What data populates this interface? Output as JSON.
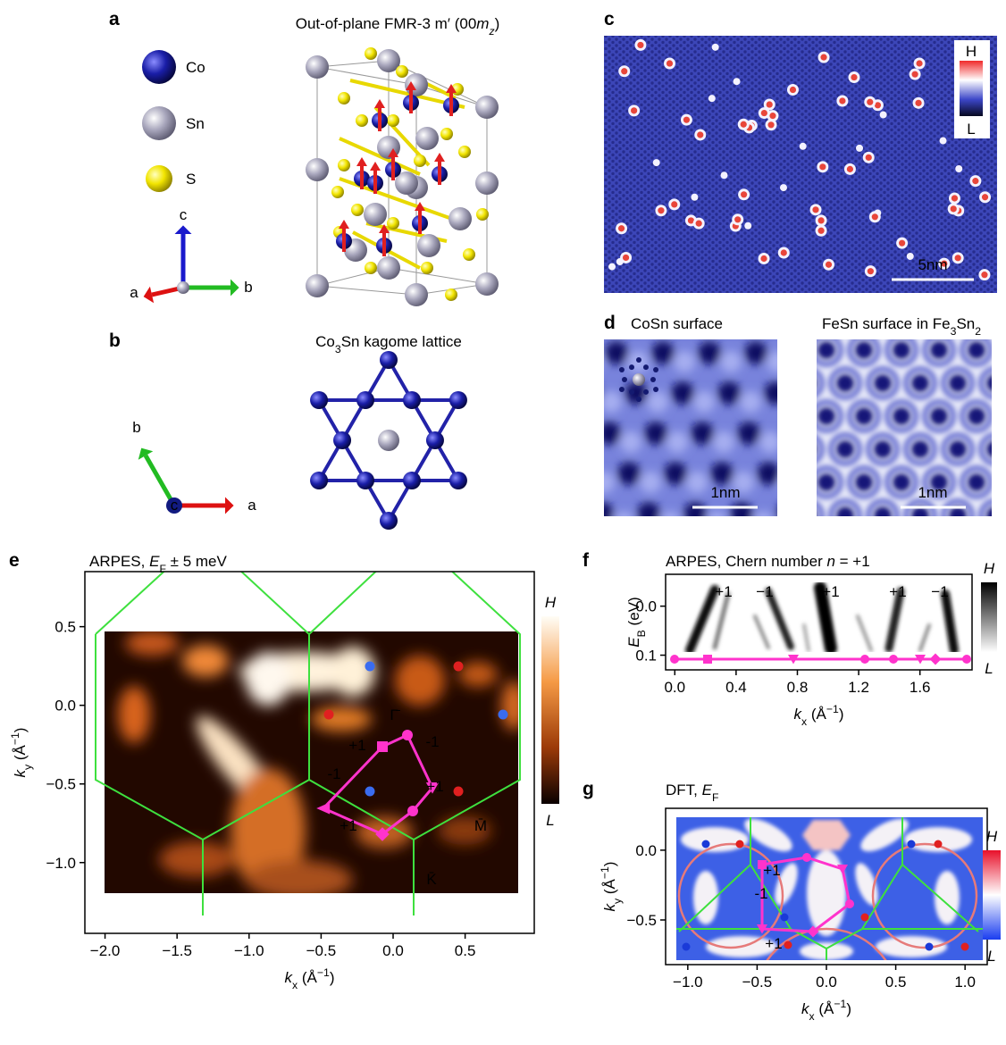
{
  "panels": {
    "a": {
      "label": "a",
      "title": {
        "pre": "Out-of-plane FMR-3 m′ (00",
        "var": "m",
        "sub": "z",
        "post": ")"
      },
      "legend": [
        "Co",
        "Sn",
        "S"
      ],
      "axes": {
        "c": "c",
        "a": "a",
        "b": "b"
      }
    },
    "b": {
      "label": "b",
      "title": {
        "pre": "Co",
        "sub": "3",
        "post": "Sn kagome lattice"
      },
      "axes": {
        "b": "b",
        "c": "c",
        "a": "a"
      }
    },
    "c": {
      "label": "c",
      "colorbar": {
        "high": "H",
        "low": "L"
      },
      "scale_bar": "5nm"
    },
    "d": {
      "label": "d",
      "left": {
        "title": "CoSn surface",
        "scale_bar": "1nm"
      },
      "right": {
        "title": {
          "pre": "FeSn surface in Fe",
          "sub1": "3",
          "mid": "Sn",
          "sub2": "2"
        },
        "scale_bar": "1nm"
      }
    },
    "e": {
      "label": "e",
      "title": {
        "pre": "ARPES, ",
        "var": "E",
        "sub": "F",
        "post": " ± 5 meV"
      },
      "x_label": {
        "var": "k",
        "sub": "x",
        "unit": " (Å",
        "exp": "−1",
        "close": ")"
      },
      "y_label": {
        "var": "k",
        "sub": "y",
        "unit": " (Å",
        "exp": "−1",
        "close": ")"
      },
      "xlim": [
        -2.14,
        0.98
      ],
      "ylim": [
        -1.45,
        0.85
      ],
      "xticks": [
        {
          "value": -2,
          "label": "−2.0"
        },
        {
          "value": -1.5,
          "label": "−1.5"
        },
        {
          "value": -1,
          "label": "−1.0"
        },
        {
          "value": -0.5,
          "label": "−0.5"
        },
        {
          "value": 0,
          "label": "0.0"
        },
        0.5
      ],
      "yticks": [
        0.5,
        {
          "value": 0,
          "label": "0.0"
        },
        {
          "value": -0.5,
          "label": "−0.5"
        },
        {
          "value": -1,
          "label": "−1.0"
        }
      ],
      "points": {
        "gamma": "Γ̄",
        "m": "M̄",
        "k": "K̄"
      },
      "chern": [
        "+1",
        "-1",
        "-1",
        "+1",
        "+1"
      ],
      "colorbar": {
        "high": "H",
        "low": "L"
      }
    },
    "f": {
      "label": "f",
      "title": {
        "pre": "ARPES, Chern number ",
        "var": "n",
        "post": " = +1"
      },
      "x_label": {
        "var": "k",
        "sub": "x",
        "unit": " (Å",
        "exp": "−1",
        "close": ")"
      },
      "y_label": {
        "var": "E",
        "sub": "B",
        "unit": " (eV)"
      },
      "xlim": [
        -0.06,
        1.94
      ],
      "ylim": [
        -0.065,
        0.13
      ],
      "y_inverted": true,
      "xticks": [
        {
          "value": 0,
          "label": "0.0"
        },
        0.4,
        0.8,
        1.2,
        1.6
      ],
      "yticks": [
        {
          "value": 0,
          "label": "0.0"
        },
        0.1
      ],
      "chern": [
        "+1",
        "−1",
        "+1",
        "+1",
        "−1"
      ],
      "colorbar": {
        "high": "H",
        "low": "L"
      }
    },
    "g": {
      "label": "g",
      "title": {
        "pre": "DFT, ",
        "var": "E",
        "sub": "F"
      },
      "x_label": {
        "var": "k",
        "sub": "x",
        "unit": " (Å",
        "exp": "−1",
        "close": ")"
      },
      "y_label": {
        "var": "k",
        "sub": "y",
        "unit": " (Å",
        "exp": "−1",
        "close": ")"
      },
      "xlim": [
        -1.16,
        1.16
      ],
      "ylim": [
        -0.82,
        0.3
      ],
      "xticks": [
        {
          "value": -1,
          "label": "−1.0"
        },
        {
          "value": -0.5,
          "label": "−0.5"
        },
        {
          "value": 0,
          "label": "0.0"
        },
        0.5,
        {
          "value": 1,
          "label": "1.0"
        }
      ],
      "yticks": [
        {
          "value": 0,
          "label": "0.0"
        },
        {
          "value": -0.5,
          "label": "−0.5"
        }
      ],
      "chern": [
        "+1",
        "-1",
        "+1"
      ],
      "colorbar": {
        "high": "H",
        "low": "L"
      }
    }
  }
}
